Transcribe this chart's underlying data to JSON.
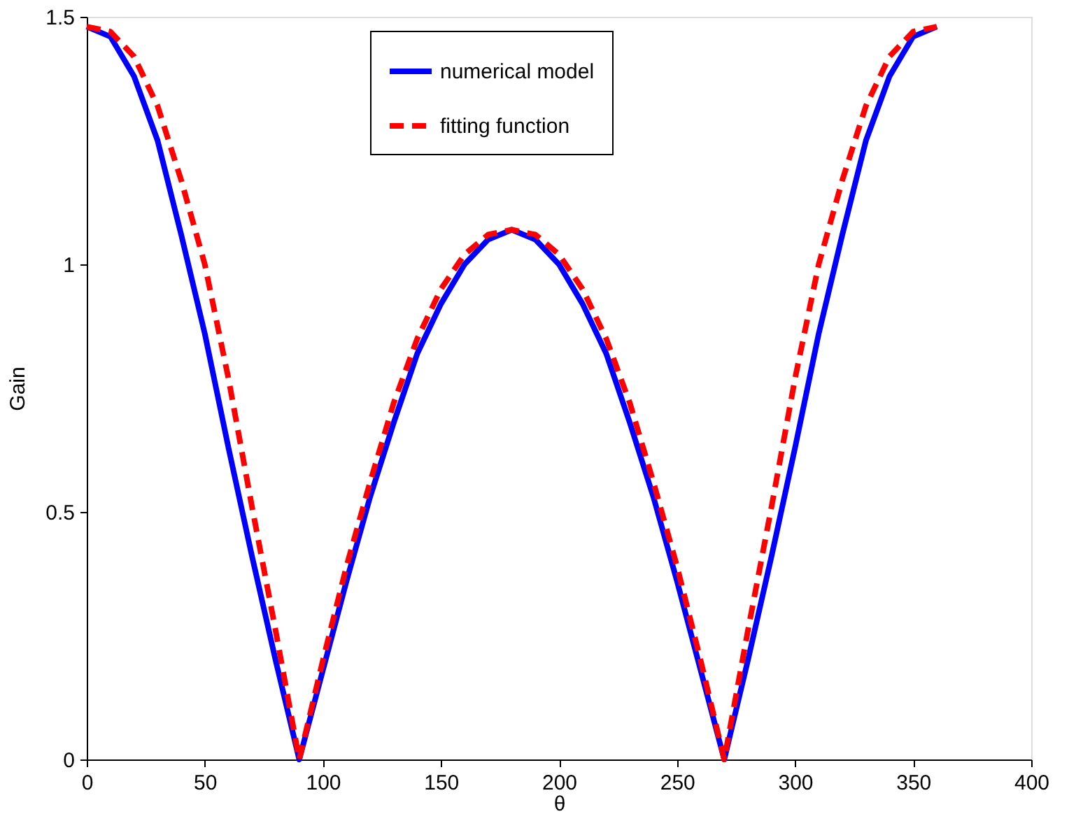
{
  "chart_data": {
    "type": "line",
    "xlabel": "θ",
    "ylabel": "Gain",
    "xlim": [
      0,
      400
    ],
    "ylim": [
      0,
      1.5
    ],
    "xticks": [
      0,
      50,
      100,
      150,
      200,
      250,
      300,
      350,
      400
    ],
    "yticks": [
      0,
      {
        "value": 0.5,
        "label": "0.5"
      },
      1,
      {
        "value": 1.5,
        "label": "1.5"
      }
    ],
    "grid": false,
    "legend": "top",
    "marker": "none",
    "x": [
      0,
      10,
      20,
      30,
      40,
      50,
      60,
      70,
      80,
      90,
      100,
      110,
      120,
      130,
      140,
      150,
      160,
      170,
      180,
      190,
      200,
      210,
      220,
      230,
      240,
      250,
      260,
      270,
      280,
      290,
      300,
      310,
      320,
      330,
      340,
      350,
      360
    ],
    "series": [
      {
        "name": "numerical model",
        "color": "#0000ff",
        "line_style": "solid",
        "values": [
          1.48,
          1.46,
          1.38,
          1.25,
          1.06,
          0.86,
          0.63,
          0.41,
          0.2,
          0,
          0.18,
          0.36,
          0.53,
          0.68,
          0.82,
          0.92,
          1.0,
          1.05,
          1.07,
          1.05,
          1.0,
          0.92,
          0.82,
          0.68,
          0.53,
          0.36,
          0.18,
          0,
          0.2,
          0.41,
          0.63,
          0.86,
          1.06,
          1.25,
          1.38,
          1.46,
          1.48
        ]
      },
      {
        "name": "fitting function",
        "color": "#ff0000",
        "line_style": "dashed",
        "values": [
          1.48,
          1.47,
          1.42,
          1.32,
          1.17,
          1.0,
          0.77,
          0.51,
          0.26,
          0,
          0.2,
          0.39,
          0.56,
          0.72,
          0.85,
          0.95,
          1.02,
          1.06,
          1.07,
          1.06,
          1.02,
          0.95,
          0.85,
          0.72,
          0.56,
          0.39,
          0.2,
          0,
          0.26,
          0.51,
          0.77,
          1.0,
          1.17,
          1.32,
          1.42,
          1.47,
          1.48
        ]
      }
    ]
  }
}
